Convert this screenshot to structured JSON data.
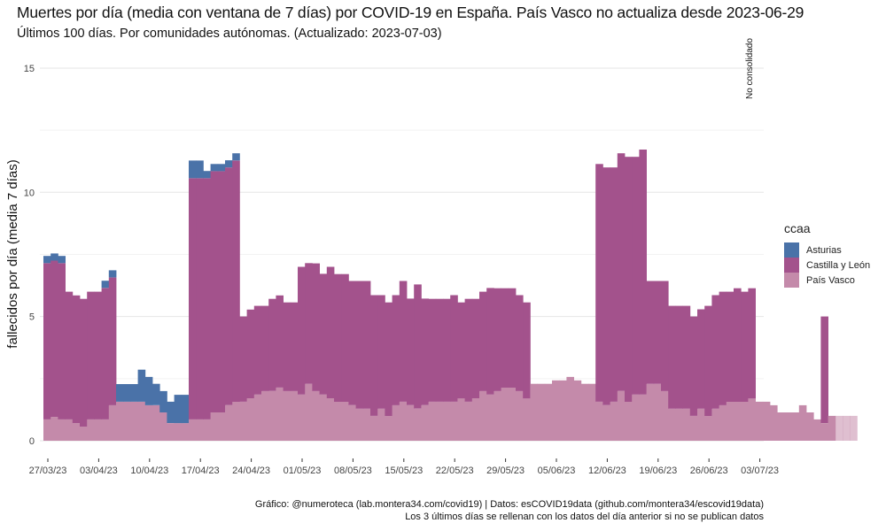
{
  "chart_data": {
    "type": "bar",
    "stacked": true,
    "title": "Muertes por día (media con ventana de 7 días) por COVID-19 en España. País Vasco no actualiza desde 2023-06-29",
    "subtitle": "Últimos 100 días. Por comunidades autónomas. (Actualizado: 2023-07-03)",
    "xlabel": "",
    "ylabel": "fallecidos por día (media 7 días)",
    "ylim": [
      0,
      15.5
    ],
    "yticks": [
      0,
      5,
      10,
      15
    ],
    "xticks": [
      "27/03/23",
      "03/04/23",
      "10/04/23",
      "17/04/23",
      "24/04/23",
      "01/05/23",
      "08/05/23",
      "15/05/23",
      "22/05/23",
      "29/05/23",
      "05/06/23",
      "12/06/23",
      "19/06/23",
      "26/06/23",
      "03/07/23"
    ],
    "grid": true,
    "legend_title": "ccaa",
    "legend_position": "right",
    "annotation": "No consolidado",
    "start_date": "2023-03-27",
    "series": [
      {
        "name": "País Vasco",
        "color": "#c48aaa",
        "values": [
          0.86,
          0.96,
          0.86,
          0.86,
          0.71,
          0.57,
          0.86,
          0.86,
          0.86,
          1.43,
          1.57,
          1.57,
          1.57,
          1.57,
          1.43,
          1.43,
          1.14,
          0.71,
          0.71,
          0.71,
          0.86,
          0.86,
          0.86,
          1.14,
          1.14,
          1.43,
          1.57,
          1.57,
          1.71,
          1.86,
          2.0,
          2.0,
          2.14,
          2.0,
          2.0,
          1.86,
          2.29,
          2.0,
          1.86,
          1.71,
          1.57,
          1.57,
          1.43,
          1.29,
          1.29,
          1.0,
          1.29,
          1.0,
          1.43,
          1.57,
          1.43,
          1.29,
          1.43,
          1.57,
          1.57,
          1.57,
          1.57,
          1.71,
          1.57,
          1.71,
          2.0,
          1.86,
          2.0,
          2.14,
          2.14,
          2.0,
          1.71,
          2.29,
          2.29,
          2.29,
          2.43,
          2.43,
          2.57,
          2.43,
          2.29,
          2.29,
          1.57,
          1.43,
          1.57,
          2.0,
          1.57,
          1.86,
          1.86,
          2.29,
          2.29,
          2.0,
          1.29,
          1.29,
          1.29,
          1.0,
          1.29,
          1.0,
          1.29,
          1.43,
          1.57,
          1.57,
          1.57,
          1.71,
          1.57,
          1.57,
          1.43,
          1.14,
          1.14,
          1.14,
          1.43,
          1.14,
          0.86,
          0.71,
          1.0,
          1.0,
          1.0,
          1.0
        ]
      },
      {
        "name": "Castilla y León",
        "color": "#a3528c",
        "values": [
          6.29,
          6.29,
          6.29,
          5.14,
          5.14,
          5.14,
          5.14,
          5.14,
          5.29,
          5.14,
          0,
          0,
          0,
          0,
          0,
          0,
          0,
          0,
          0,
          0,
          9.71,
          9.71,
          9.71,
          9.71,
          9.71,
          9.57,
          9.71,
          3.43,
          3.57,
          3.57,
          3.43,
          3.71,
          3.71,
          3.57,
          3.57,
          5.14,
          4.86,
          5.14,
          4.86,
          5.29,
          5.14,
          5.14,
          5.0,
          5.14,
          5.14,
          4.86,
          4.57,
          4.57,
          4.43,
          4.86,
          4.29,
          5.0,
          4.29,
          4.14,
          4.14,
          4.14,
          4.29,
          3.86,
          4.14,
          4.0,
          4.0,
          4.29,
          4.14,
          4.0,
          4.0,
          3.86,
          3.86,
          0,
          0,
          0,
          0,
          0,
          0,
          0,
          0,
          0,
          9.57,
          9.57,
          9.43,
          9.57,
          9.86,
          9.57,
          9.86,
          4.14,
          4.14,
          4.43,
          4.14,
          4.14,
          4.14,
          4.0,
          4.0,
          4.43,
          4.57,
          4.57,
          4.43,
          4.57,
          4.43,
          4.43,
          0,
          0,
          0,
          0,
          0,
          0,
          0,
          0,
          0,
          4.29,
          0,
          0,
          0,
          0
        ]
      },
      {
        "name": "Asturias",
        "color": "#4a72a8",
        "values": [
          0.29,
          0.29,
          0.29,
          0,
          0,
          0,
          0,
          0,
          0.29,
          0.29,
          0.71,
          0.71,
          0.71,
          1.29,
          1.14,
          0.86,
          0.86,
          0.86,
          1.14,
          1.14,
          0.71,
          0.71,
          0.29,
          0.29,
          0.29,
          0.29,
          0.29,
          0,
          0,
          0,
          0,
          0,
          0,
          0,
          0,
          0,
          0,
          0,
          0,
          0,
          0,
          0,
          0,
          0,
          0,
          0,
          0,
          0,
          0,
          0,
          0,
          0,
          0,
          0,
          0,
          0,
          0,
          0,
          0,
          0,
          0,
          0,
          0,
          0,
          0,
          0,
          0,
          0,
          0,
          0,
          0,
          0,
          0,
          0,
          0,
          0,
          0,
          0,
          0,
          0,
          0,
          0,
          0,
          0,
          0,
          0,
          0,
          0,
          0,
          0,
          0,
          0,
          0,
          0,
          0,
          0,
          0,
          0,
          0,
          0,
          0,
          0,
          0,
          0,
          0,
          0,
          0,
          0,
          0,
          0,
          0,
          0,
          0
        ]
      }
    ],
    "notes": "Last 3 days (not consolidated) are rendered semi-transparent."
  },
  "legend": {
    "title": "ccaa",
    "items": [
      "Asturias",
      "Castilla y León",
      "País Vasco"
    ]
  },
  "caption": {
    "line1": "Gráfico: @numeroteca (lab.montera34.com/covid19) | Datos: esCOVID19data (github.com/montera34/escovid19data)",
    "line2": "Los 3 últimos días se rellenan con los datos del día anterior si no se publican datos"
  }
}
